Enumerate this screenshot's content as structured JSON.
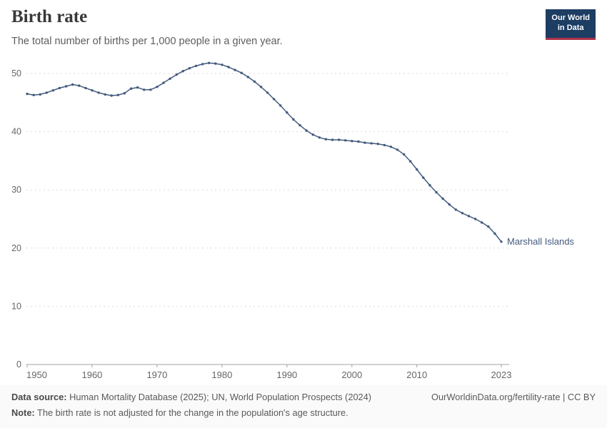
{
  "header": {
    "logo": {
      "line1": "Our World",
      "line2": "in Data",
      "bg_color": "#1d3d63",
      "accent_color": "#b0334a"
    }
  },
  "chart_data": {
    "type": "line",
    "title": "Birth rate",
    "subtitle": "The total number of births per 1,000 people in a given year.",
    "entity": "Marshall Islands",
    "line_color": "#435a7d",
    "label_color": "#435a7d",
    "grid": "horizontal-dashed",
    "legend_position": "end-of-line-label",
    "xlabel": "",
    "ylabel": "",
    "xlim": [
      1950,
      2023
    ],
    "ylim": [
      0,
      50
    ],
    "xticks": [
      1950,
      1960,
      1970,
      1980,
      1990,
      2000,
      2010,
      2023
    ],
    "yticks": [
      0,
      10,
      20,
      30,
      40,
      50
    ],
    "years": [
      1950,
      1951,
      1952,
      1953,
      1954,
      1955,
      1956,
      1957,
      1958,
      1959,
      1960,
      1961,
      1962,
      1963,
      1964,
      1965,
      1966,
      1967,
      1968,
      1969,
      1970,
      1971,
      1972,
      1973,
      1974,
      1975,
      1976,
      1977,
      1978,
      1979,
      1980,
      1981,
      1982,
      1983,
      1984,
      1985,
      1986,
      1987,
      1988,
      1989,
      1990,
      1991,
      1992,
      1993,
      1994,
      1995,
      1996,
      1997,
      1998,
      1999,
      2000,
      2001,
      2002,
      2003,
      2004,
      2005,
      2006,
      2007,
      2008,
      2009,
      2010,
      2011,
      2012,
      2013,
      2014,
      2015,
      2016,
      2017,
      2018,
      2019,
      2020,
      2021,
      2022,
      2023
    ],
    "values": [
      46.5,
      46.3,
      46.4,
      46.7,
      47.1,
      47.5,
      47.8,
      48.1,
      47.9,
      47.5,
      47.1,
      46.7,
      46.4,
      46.2,
      46.3,
      46.6,
      47.4,
      47.6,
      47.2,
      47.2,
      47.7,
      48.4,
      49.1,
      49.8,
      50.4,
      50.9,
      51.3,
      51.6,
      51.8,
      51.7,
      51.5,
      51.1,
      50.6,
      50.1,
      49.4,
      48.6,
      47.7,
      46.7,
      45.6,
      44.5,
      43.3,
      42.1,
      41.1,
      40.2,
      39.5,
      39.0,
      38.7,
      38.6,
      38.6,
      38.5,
      38.4,
      38.3,
      38.1,
      38.0,
      37.9,
      37.7,
      37.4,
      36.9,
      36.1,
      34.9,
      33.5,
      32.1,
      30.8,
      29.6,
      28.5,
      27.5,
      26.6,
      26.0,
      25.5,
      25.0,
      24.4,
      23.7,
      22.5,
      21.1
    ]
  },
  "footer": {
    "datasource_label": "Data source:",
    "datasource_text": " Human Mortality Database (2025); UN, World Population Prospects (2024)",
    "note_label": "Note:",
    "note_text": " The birth rate is not adjusted for the change in the population's age structure.",
    "license": "OurWorldinData.org/fertility-rate | CC BY"
  }
}
